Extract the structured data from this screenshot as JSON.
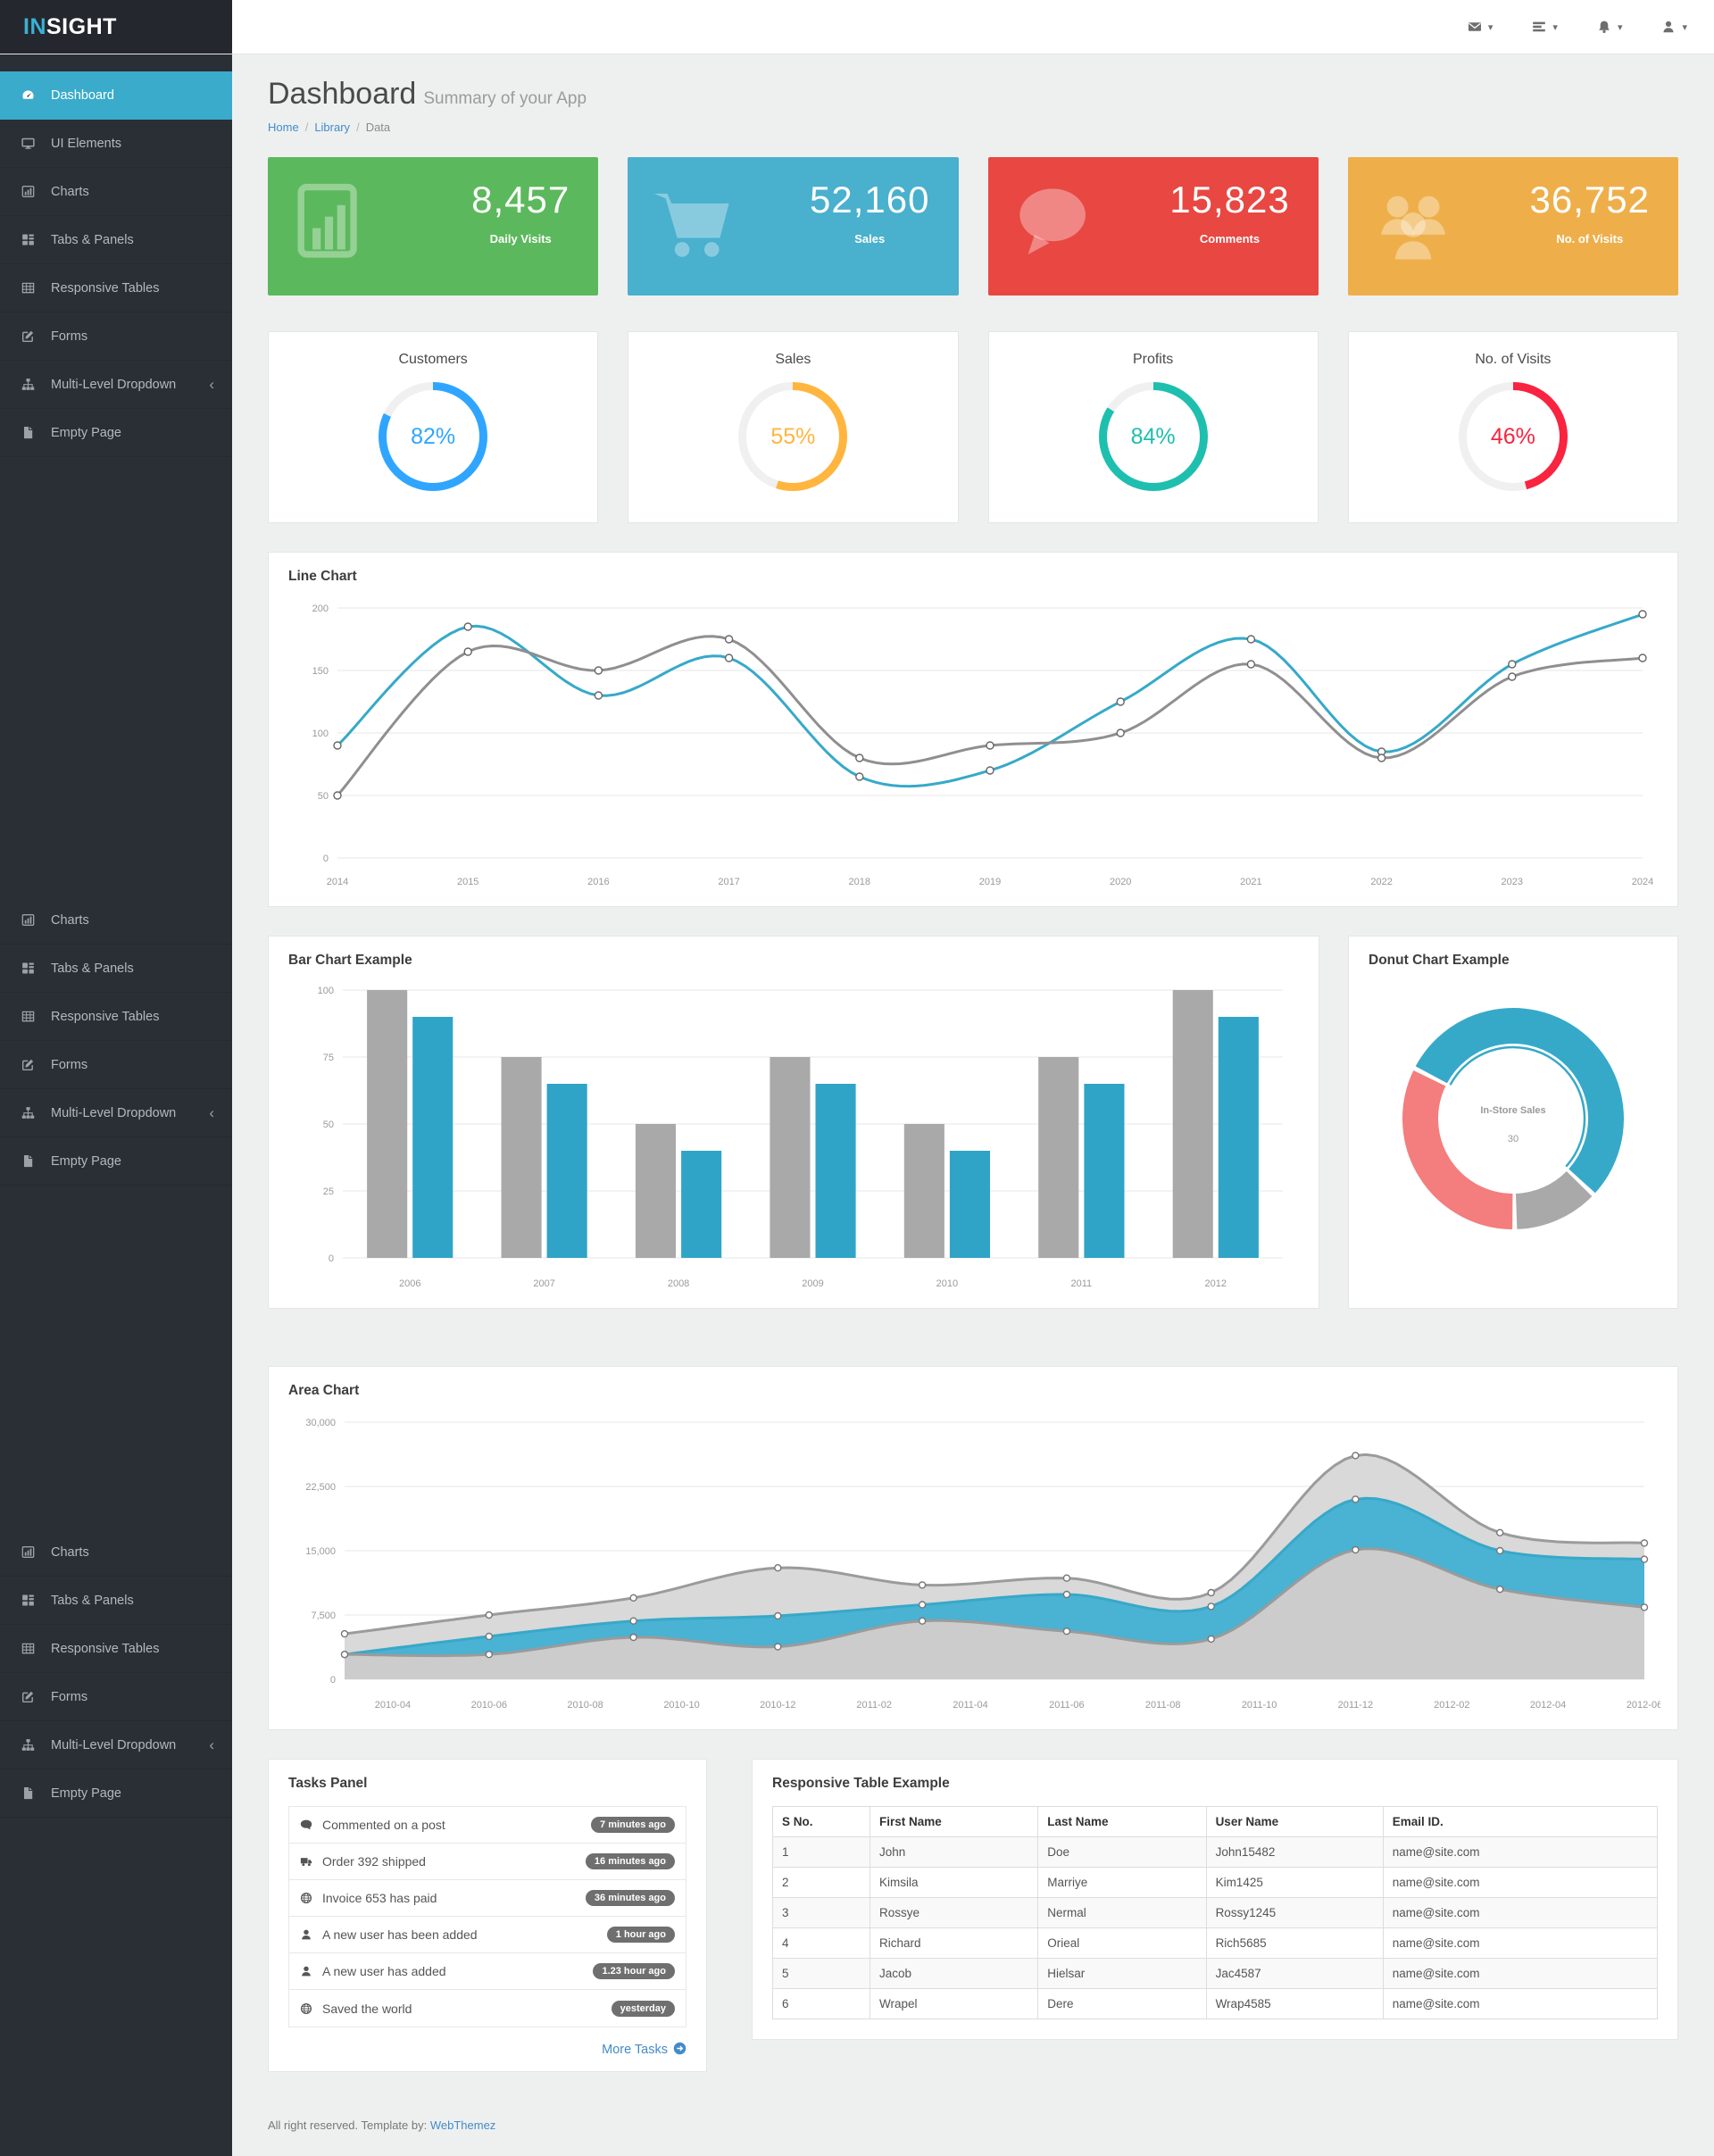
{
  "brand": {
    "prefix": "IN",
    "suffix": "SIGHT"
  },
  "header": {
    "icons": [
      "envelope",
      "tasks",
      "bell",
      "user"
    ]
  },
  "sidebar": {
    "groups": [
      [
        {
          "label": "Dashboard",
          "icon": "gauge",
          "active": true
        },
        {
          "label": "UI Elements",
          "icon": "monitor"
        },
        {
          "label": "Charts",
          "icon": "chartbar"
        },
        {
          "label": "Tabs & Panels",
          "icon": "tabs"
        },
        {
          "label": "Responsive Tables",
          "icon": "tablegrid"
        },
        {
          "label": "Forms",
          "icon": "pencil"
        },
        {
          "label": "Multi-Level Dropdown",
          "icon": "sitemap",
          "chevron": true
        },
        {
          "label": "Empty Page",
          "icon": "file"
        }
      ],
      [
        {
          "label": "Charts",
          "icon": "chartbar"
        },
        {
          "label": "Tabs & Panels",
          "icon": "tabs"
        },
        {
          "label": "Responsive Tables",
          "icon": "tablegrid"
        },
        {
          "label": "Forms",
          "icon": "pencil"
        },
        {
          "label": "Multi-Level Dropdown",
          "icon": "sitemap",
          "chevron": true
        },
        {
          "label": "Empty Page",
          "icon": "file"
        }
      ],
      [
        {
          "label": "Charts",
          "icon": "chartbar"
        },
        {
          "label": "Tabs & Panels",
          "icon": "tabs"
        },
        {
          "label": "Responsive Tables",
          "icon": "tablegrid"
        },
        {
          "label": "Forms",
          "icon": "pencil"
        },
        {
          "label": "Multi-Level Dropdown",
          "icon": "sitemap",
          "chevron": true
        },
        {
          "label": "Empty Page",
          "icon": "file"
        }
      ]
    ]
  },
  "page": {
    "title": "Dashboard",
    "subtitle": "Summary of your App",
    "breadcrumb": [
      "Home",
      "Library",
      "Data"
    ]
  },
  "stat_cards": [
    {
      "value": "8,457",
      "label": "Daily Visits",
      "color": "#5cb85c",
      "icon": "chart"
    },
    {
      "value": "52,160",
      "label": "Sales",
      "color": "#49b0ce",
      "icon": "cart"
    },
    {
      "value": "15,823",
      "label": "Comments",
      "color": "#e84742",
      "icon": "comment"
    },
    {
      "value": "36,752",
      "label": "No. of Visits",
      "color": "#eeaf4b",
      "icon": "users"
    }
  ],
  "gauges": [
    {
      "title": "Customers",
      "percent": 82,
      "color": "#30a5ff"
    },
    {
      "title": "Sales",
      "percent": 55,
      "color": "#ffb53e"
    },
    {
      "title": "Profits",
      "percent": 84,
      "color": "#1ebfae"
    },
    {
      "title": "No. of Visits",
      "percent": 46,
      "color": "#f9243f"
    }
  ],
  "chart_data": [
    {
      "type": "line",
      "panel_title": "Line Chart",
      "x": [
        "2014",
        "2015",
        "2016",
        "2017",
        "2018",
        "2019",
        "2020",
        "2021",
        "2022",
        "2023",
        "2024"
      ],
      "ymax": 200,
      "yticks": [
        0,
        50,
        100,
        150,
        200
      ],
      "grid": true,
      "legend": "none",
      "series": [
        {
          "name": "series-1",
          "color": "#36a9c9",
          "values": [
            90,
            185,
            130,
            160,
            65,
            70,
            125,
            175,
            85,
            155,
            195
          ]
        },
        {
          "name": "series-2",
          "color": "#8f8f8f",
          "values": [
            50,
            165,
            150,
            175,
            80,
            90,
            100,
            155,
            80,
            145,
            160
          ]
        }
      ]
    },
    {
      "type": "bar",
      "panel_title": "Bar Chart Example",
      "categories": [
        "2006",
        "2007",
        "2008",
        "2009",
        "2010",
        "2011",
        "2012"
      ],
      "ymax": 100,
      "yticks": [
        0,
        25,
        50,
        75,
        100
      ],
      "grid": true,
      "legend": "none",
      "series": [
        {
          "name": "series-a",
          "color": "#a9a9a9",
          "values": [
            100,
            75,
            50,
            75,
            50,
            75,
            100
          ]
        },
        {
          "name": "series-b",
          "color": "#2fa4c7",
          "values": [
            90,
            65,
            40,
            65,
            40,
            65,
            90
          ]
        }
      ]
    },
    {
      "type": "pie",
      "panel_title": "Donut Chart Example",
      "center_label": "In-Store Sales",
      "center_value": "30",
      "start_angle": -63,
      "segments": [
        {
          "label": "In-Store Sales",
          "value": 30,
          "color": "#36a9c9"
        },
        {
          "label": "",
          "value": 7,
          "color": "#a9a9a9"
        },
        {
          "label": "",
          "value": 18,
          "color": "#f47d7d"
        }
      ]
    },
    {
      "type": "area",
      "panel_title": "Area Chart",
      "x": [
        "2010-03",
        "2010-06",
        "2010-09",
        "2010-12",
        "2011-03",
        "2011-06",
        "2011-09",
        "2011-12",
        "2012-03",
        "2012-06"
      ],
      "x_months": [
        0,
        3,
        6,
        9,
        12,
        15,
        18,
        21,
        24,
        27
      ],
      "domain_months": 27,
      "xtick_labels": [
        "2010-04",
        "2010-06",
        "2010-08",
        "2010-10",
        "2010-12",
        "2011-02",
        "2011-04",
        "2011-06",
        "2011-08",
        "2011-10",
        "2011-12",
        "2012-02",
        "2012-04",
        "2012-06"
      ],
      "ymax": 30000,
      "yticks": [
        0,
        7500,
        15000,
        22500,
        30000
      ],
      "grid": true,
      "legend": "none",
      "series": [
        {
          "name": "upper",
          "line_color": "#9b9b9b",
          "fill_color": "#d9d9d9",
          "values": [
            5300,
            7500,
            9500,
            13000,
            11000,
            11800,
            10100,
            26100,
            17100,
            15900
          ]
        },
        {
          "name": "middle",
          "line_color": "#38a8c8",
          "fill_color": "#4ab2d2",
          "values": [
            2900,
            5000,
            6800,
            7400,
            8700,
            9900,
            8500,
            21000,
            15000,
            14000
          ]
        },
        {
          "name": "lower",
          "line_color": "#9b9b9b",
          "fill_color": "#cccccc",
          "values": [
            2900,
            2900,
            4900,
            3800,
            6800,
            5600,
            4700,
            15100,
            10500,
            8400
          ]
        }
      ]
    }
  ],
  "tasks_panel": {
    "title": "Tasks Panel",
    "items": [
      {
        "icon": "comment",
        "text": "Commented on a post",
        "badge": "7 minutes ago"
      },
      {
        "icon": "truck",
        "text": "Order 392 shipped",
        "badge": "16 minutes ago"
      },
      {
        "icon": "globe",
        "text": "Invoice 653 has paid",
        "badge": "36 minutes ago"
      },
      {
        "icon": "user",
        "text": "A new user has been added",
        "badge": "1 hour ago"
      },
      {
        "icon": "user",
        "text": "A new user has added",
        "badge": "1.23 hour ago"
      },
      {
        "icon": "globe",
        "text": "Saved the world",
        "badge": "yesterday"
      }
    ],
    "more_label": "More Tasks"
  },
  "table_panel": {
    "title": "Responsive Table Example",
    "headers": [
      "S No.",
      "First Name",
      "Last Name",
      "User Name",
      "Email ID."
    ],
    "rows": [
      [
        "1",
        "John",
        "Doe",
        "John15482",
        "name@site.com"
      ],
      [
        "2",
        "Kimsila",
        "Marriye",
        "Kim1425",
        "name@site.com"
      ],
      [
        "3",
        "Rossye",
        "Nermal",
        "Rossy1245",
        "name@site.com"
      ],
      [
        "4",
        "Richard",
        "Orieal",
        "Rich5685",
        "name@site.com"
      ],
      [
        "5",
        "Jacob",
        "Hielsar",
        "Jac4587",
        "name@site.com"
      ],
      [
        "6",
        "Wrapel",
        "Dere",
        "Wrap4585",
        "name@site.com"
      ]
    ]
  },
  "footer": {
    "text": "All right reserved. Template by: ",
    "link": "WebThemez"
  }
}
